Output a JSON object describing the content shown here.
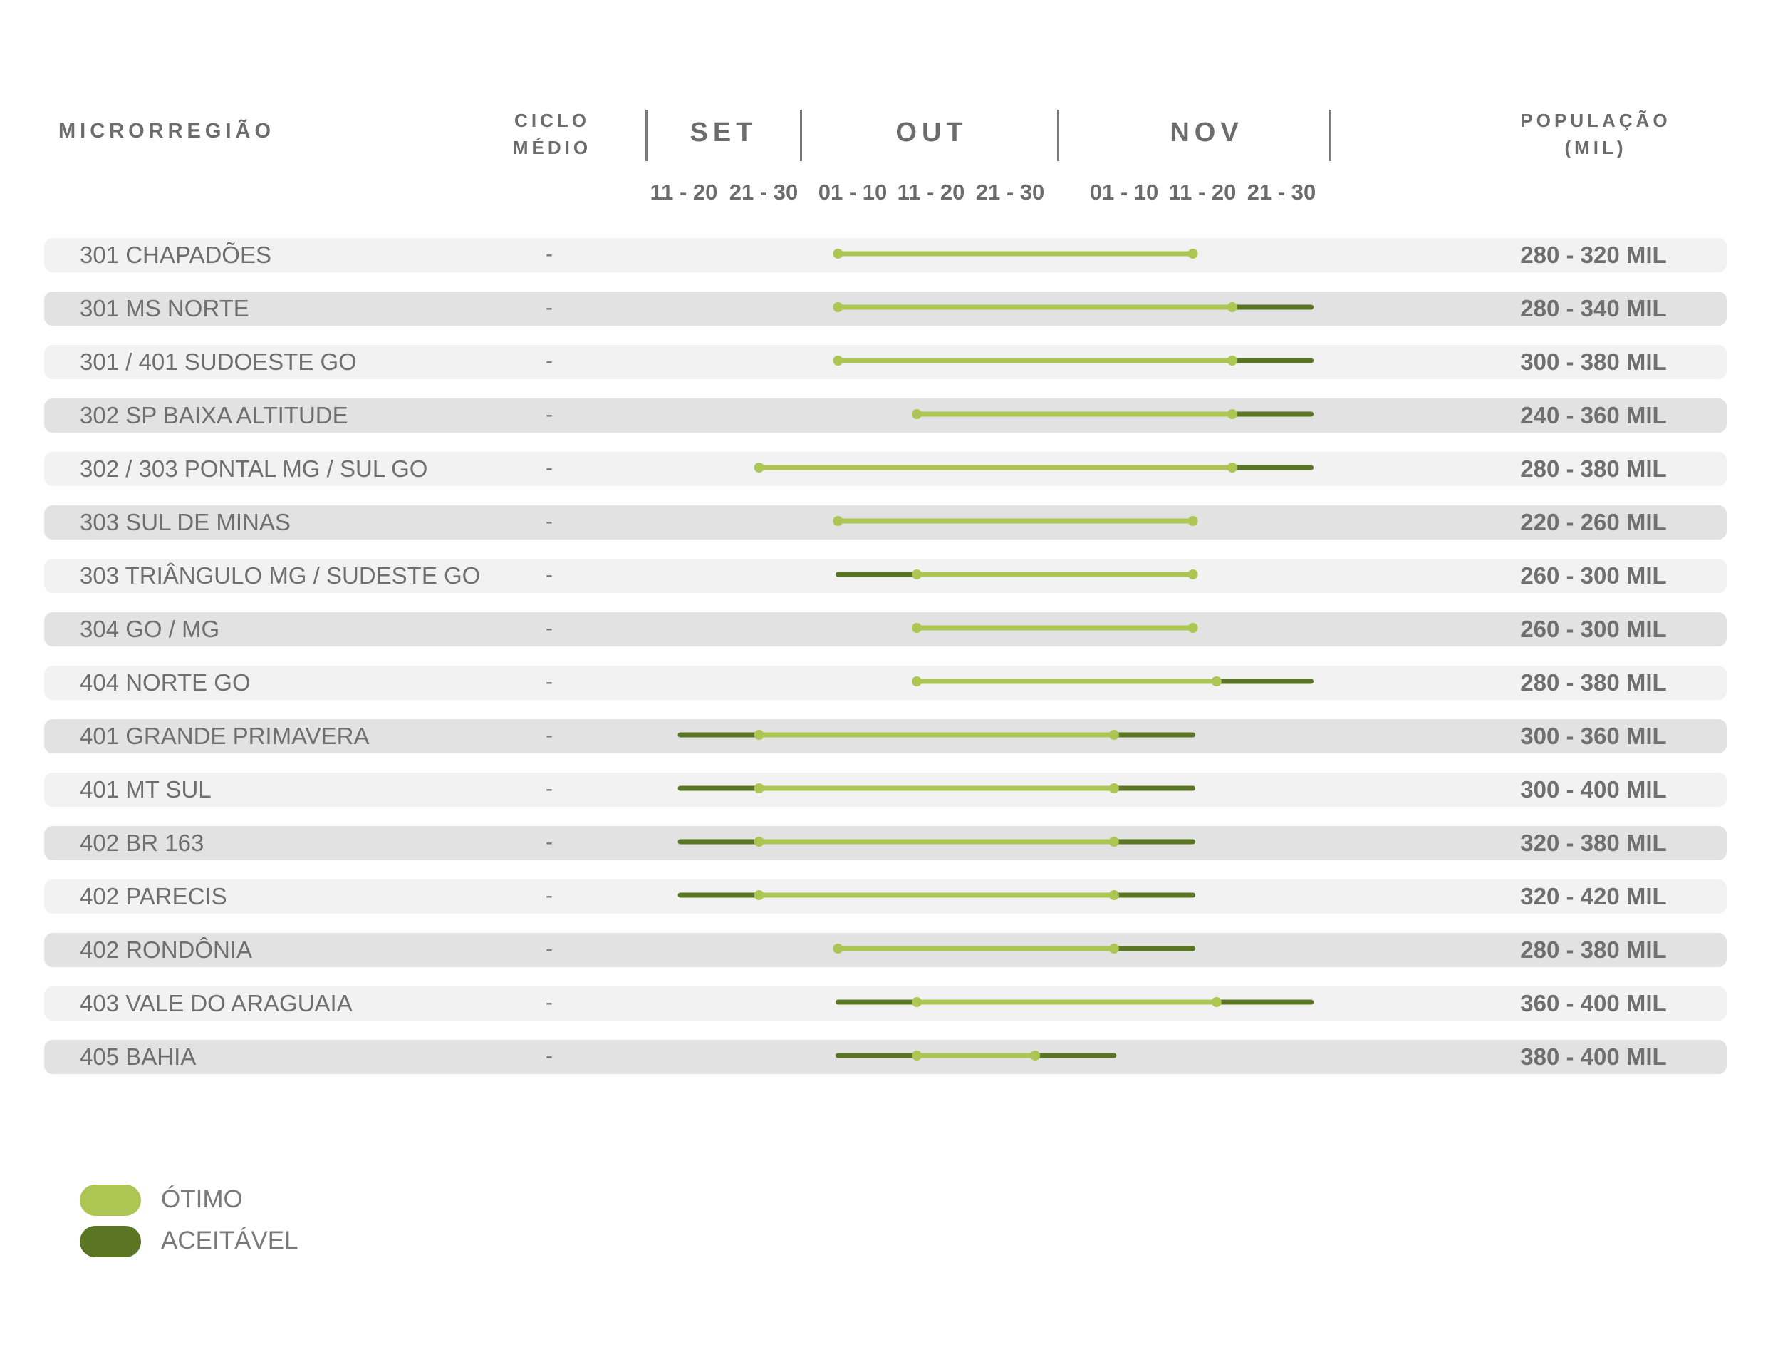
{
  "chart_data": {
    "type": "gantt",
    "headers": {
      "region": "MICRORREGIÃO",
      "ciclo": "CICLO MÉDIO",
      "population": "POPULAÇÃO (MIL)"
    },
    "months": [
      "SET",
      "OUT",
      "NOV"
    ],
    "decendios": [
      "11 - 20",
      "21 - 30",
      "01 - 10",
      "11 - 20",
      "21 - 30",
      "01 - 10",
      "11 - 20",
      "21 - 30"
    ],
    "legend": [
      {
        "label": "ÓTIMO",
        "color": "#adc552"
      },
      {
        "label": "ACEITÁVEL",
        "color": "#5a7624"
      }
    ],
    "rows": [
      {
        "name": "301 CHAPADÕES",
        "ciclo": "-",
        "population": "280 - 320 MIL",
        "acceptable": null,
        "optimal": [
          "10-01",
          "11-15"
        ]
      },
      {
        "name": "301 MS NORTE",
        "ciclo": "-",
        "population": "280 - 340 MIL",
        "acceptable": [
          "10-01",
          "11-30"
        ],
        "optimal": [
          "10-01",
          "11-20"
        ]
      },
      {
        "name": "301 / 401 SUDOESTE GO",
        "ciclo": "-",
        "population": "300 - 380 MIL",
        "acceptable": [
          "10-01",
          "11-30"
        ],
        "optimal": [
          "10-01",
          "11-20"
        ]
      },
      {
        "name": "302 SP BAIXA ALTITUDE",
        "ciclo": "-",
        "population": "240 - 360 MIL",
        "acceptable": [
          "10-11",
          "11-30"
        ],
        "optimal": [
          "10-11",
          "11-20"
        ]
      },
      {
        "name": "302 / 303 PONTAL MG / SUL GO",
        "ciclo": "-",
        "population": "280 - 380 MIL",
        "acceptable": [
          "09-21",
          "11-30"
        ],
        "optimal": [
          "09-21",
          "11-20"
        ]
      },
      {
        "name": "303 SUL DE MINAS",
        "ciclo": "-",
        "population": "220 - 260 MIL",
        "acceptable": null,
        "optimal": [
          "10-01",
          "11-15"
        ]
      },
      {
        "name": "303 TRIÂNGULO MG / SUDESTE GO",
        "ciclo": "-",
        "population": "260 - 300 MIL",
        "acceptable": [
          "10-01",
          "11-15"
        ],
        "optimal": [
          "10-11",
          "11-15"
        ]
      },
      {
        "name": "304 GO / MG",
        "ciclo": "-",
        "population": "260 - 300 MIL",
        "acceptable": null,
        "optimal": [
          "10-11",
          "11-15"
        ]
      },
      {
        "name": "404 NORTE GO",
        "ciclo": "-",
        "population": "280 - 380 MIL",
        "acceptable": [
          "10-11",
          "11-30"
        ],
        "optimal": [
          "10-11",
          "11-18"
        ]
      },
      {
        "name": "401 GRANDE PRIMAVERA",
        "ciclo": "-",
        "population": "300 - 360 MIL",
        "acceptable": [
          "09-11",
          "11-15"
        ],
        "optimal": [
          "09-21",
          "11-05"
        ]
      },
      {
        "name": "401 MT SUL",
        "ciclo": "-",
        "population": "300 - 400 MIL",
        "acceptable": [
          "09-11",
          "11-15"
        ],
        "optimal": [
          "09-21",
          "11-05"
        ]
      },
      {
        "name": "402 BR 163",
        "ciclo": "-",
        "population": "320 - 380 MIL",
        "acceptable": [
          "09-11",
          "11-15"
        ],
        "optimal": [
          "09-21",
          "11-05"
        ]
      },
      {
        "name": "402 PARECIS",
        "ciclo": "-",
        "population": "320 - 420 MIL",
        "acceptable": [
          "09-11",
          "11-15"
        ],
        "optimal": [
          "09-21",
          "11-05"
        ]
      },
      {
        "name": "402 RONDÔNIA",
        "ciclo": "-",
        "population": "280 - 380 MIL",
        "acceptable": [
          "10-01",
          "11-15"
        ],
        "optimal": [
          "10-01",
          "11-05"
        ]
      },
      {
        "name": "403 VALE DO ARAGUAIA",
        "ciclo": "-",
        "population": "360 - 400 MIL",
        "acceptable": [
          "10-01",
          "11-30"
        ],
        "optimal": [
          "10-11",
          "11-18"
        ]
      },
      {
        "name": "405 BAHIA",
        "ciclo": "-",
        "population": "380 - 400 MIL",
        "acceptable": [
          "10-01",
          "11-05"
        ],
        "optimal": [
          "10-11",
          "10-26"
        ]
      }
    ]
  }
}
